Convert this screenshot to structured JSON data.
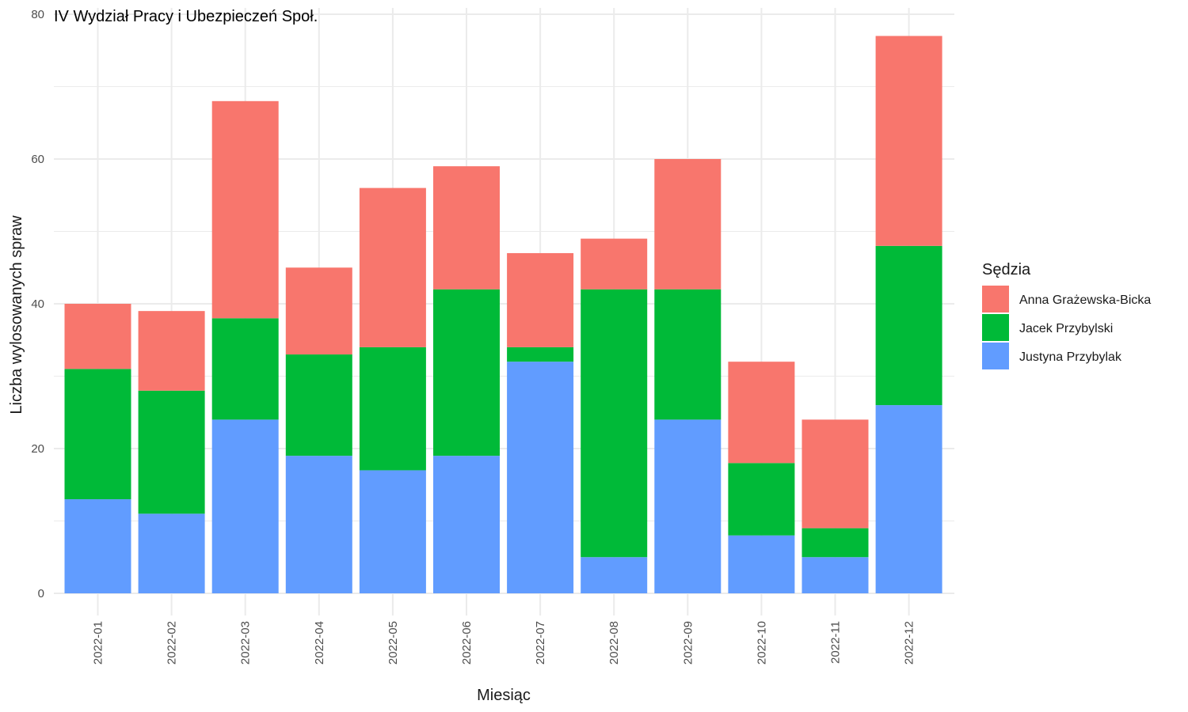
{
  "chart_data": {
    "type": "bar",
    "stacked": true,
    "title": "IV Wydział Pracy i Ubezpieczeń Społ.",
    "xlabel": "Miesiąc",
    "ylabel": "Liczba wylosowanych spraw",
    "ylim": [
      0,
      80
    ],
    "yticks": [
      0,
      20,
      40,
      60,
      80
    ],
    "grid": true,
    "categories": [
      "2022-01",
      "2022-02",
      "2022-03",
      "2022-04",
      "2022-05",
      "2022-06",
      "2022-07",
      "2022-08",
      "2022-09",
      "2022-10",
      "2022-11",
      "2022-12"
    ],
    "legend": {
      "title": "Sędzia",
      "position": "right"
    },
    "series": [
      {
        "name": "Justyna Przybylak",
        "color": "#619CFF",
        "values": [
          13,
          11,
          24,
          19,
          17,
          19,
          32,
          5,
          24,
          8,
          5,
          26
        ]
      },
      {
        "name": "Jacek Przybylski",
        "color": "#00BA38",
        "values": [
          18,
          17,
          14,
          14,
          17,
          23,
          2,
          37,
          18,
          10,
          4,
          22
        ]
      },
      {
        "name": "Anna Grażewska-Bicka",
        "color": "#F8766D",
        "values": [
          9,
          11,
          30,
          12,
          22,
          17,
          13,
          7,
          18,
          14,
          15,
          29
        ]
      }
    ],
    "legend_order": [
      "Anna Grażewska-Bicka",
      "Jacek Przybylski",
      "Justyna Przybylak"
    ]
  }
}
